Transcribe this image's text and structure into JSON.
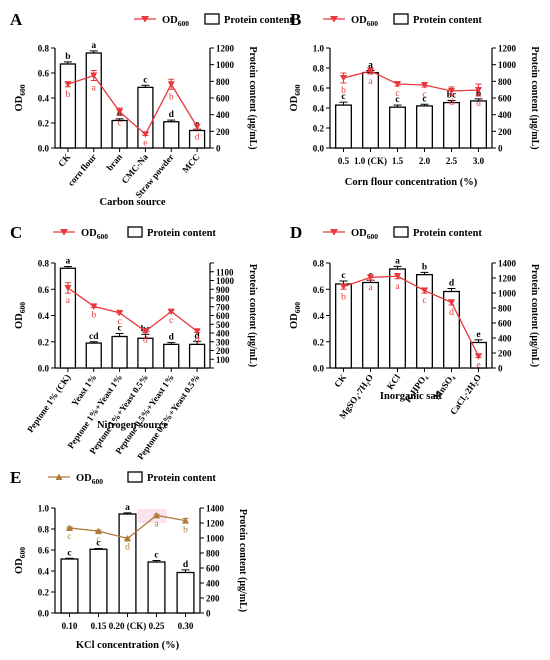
{
  "colors": {
    "red": "#e8383d",
    "brown": "#b07a3b",
    "highlight": "#f6dcea"
  },
  "legend": {
    "od_label": "OD",
    "od_sub": "600",
    "protein_label": "Protein content"
  },
  "chart_data": [
    {
      "panel": "A",
      "type": "bar",
      "categories": [
        "CK",
        "corn flour",
        "bran",
        "CMC-Na",
        "Straw powder",
        "MCC"
      ],
      "xlabel": "Carbon source",
      "x_tick_rotate": -50,
      "ylabel_left": "OD",
      "ylabel_left_sub": "600",
      "ylabel_right": "Protein content (μg/mL)",
      "ylim_left": [
        0,
        0.8
      ],
      "yticks_left": [
        "0.0",
        "0.2",
        "0.4",
        "0.6",
        "0.8"
      ],
      "ylim_right": [
        0,
        1200
      ],
      "yticks_right": [
        "0",
        "200",
        "400",
        "600",
        "800",
        "1000",
        "1200"
      ],
      "series": [
        {
          "name": "Protein content",
          "values": [
            1008,
            1140,
            330,
            728,
            315,
            210
          ],
          "errors": [
            25,
            25,
            20,
            25,
            20,
            15
          ],
          "letters": [
            "b",
            "a",
            "d",
            "c",
            "d",
            "e"
          ]
        },
        {
          "name": "OD600",
          "values": [
            0.51,
            0.58,
            0.29,
            0.11,
            0.51,
            0.17
          ],
          "errors": [
            0.02,
            0.04,
            0.03,
            0.01,
            0.04,
            0.02
          ],
          "letters": [
            "b",
            "a",
            "c",
            "e",
            "b",
            "d"
          ]
        }
      ],
      "line_color": "red"
    },
    {
      "panel": "B",
      "type": "bar",
      "categories": [
        "0.5",
        "1.0 (CK)",
        "1.5",
        "2.0",
        "2.5",
        "3.0"
      ],
      "xlabel": "Corn flour concentration (%)",
      "x_tick_rotate": 0,
      "ylabel_left": "OD",
      "ylabel_left_sub": "600",
      "ylabel_right": "Protein content (μg/mL)",
      "ylim_left": [
        0,
        1.0
      ],
      "yticks_left": [
        "0.0",
        "0.2",
        "0.4",
        "0.6",
        "0.8",
        "1.0"
      ],
      "ylim_right": [
        0,
        1200
      ],
      "yticks_right": [
        "0",
        "200",
        "400",
        "600",
        "800",
        "1000",
        "1200"
      ],
      "series": [
        {
          "name": "Protein content",
          "values": [
            515,
            905,
            490,
            505,
            545,
            565
          ],
          "errors": [
            35,
            25,
            25,
            20,
            25,
            25
          ],
          "letters": [
            "c",
            "a",
            "c",
            "c",
            "bc",
            "b"
          ]
        },
        {
          "name": "OD600",
          "values": [
            0.7,
            0.77,
            0.64,
            0.63,
            0.57,
            0.58
          ],
          "errors": [
            0.05,
            0.03,
            0.02,
            0.02,
            0.04,
            0.06
          ],
          "letters": [
            "b",
            "a",
            "c",
            "c",
            "d",
            "d"
          ]
        }
      ],
      "line_color": "red"
    },
    {
      "panel": "C",
      "type": "bar",
      "categories": [
        "Peptone 1% (CK)",
        "Yeast 1%",
        "Peptone 1%+Yeast 1%",
        "Peptone 1%+Yeast 0.5%",
        "Peptone 0.5%+Yeast 1%",
        "Peptone 0.5%+Yeast 0.5%"
      ],
      "xlabel": "Nitrogen source",
      "x_tick_rotate": -55,
      "ylabel_left": "OD",
      "ylabel_left_sub": "600",
      "ylabel_right": "Protein content (μg/mL)",
      "ylim_left": [
        0,
        0.8
      ],
      "yticks_left": [
        "0.0",
        "0.2",
        "0.4",
        "0.6",
        "0.8"
      ],
      "ylim_right": [
        0,
        1200
      ],
      "yticks_right": [
        "0",
        "100",
        "200",
        "300",
        "400",
        "500",
        "600",
        "700",
        "800",
        "900",
        "1000",
        "1100",
        "1200"
      ],
      "yticks_right_shown": [
        "100",
        "200",
        "300",
        "400",
        "500",
        "600",
        "700",
        "800",
        "900",
        "1000",
        "1100"
      ],
      "series": [
        {
          "name": "Protein content",
          "values": [
            1140,
            285,
            360,
            340,
            270,
            270
          ],
          "errors": [
            20,
            15,
            35,
            45,
            20,
            35
          ],
          "letters": [
            "a",
            "cd",
            "c",
            "bc",
            "d",
            "d"
          ]
        },
        {
          "name": "OD600",
          "values": [
            0.61,
            0.47,
            0.42,
            0.28,
            0.43,
            0.28
          ],
          "errors": [
            0.04,
            0.01,
            0.01,
            0.01,
            0.01,
            0.01
          ],
          "letters": [
            "a",
            "b",
            "c",
            "d",
            "c",
            "d"
          ]
        }
      ],
      "line_color": "red"
    },
    {
      "panel": "D",
      "type": "bar",
      "categories": [
        "CK",
        "MgSO₄·7H₂O",
        "KCl",
        "K₂HPO₄",
        "MnSO₄",
        "CaCl₂·2H₂O"
      ],
      "xlabel": "Inorganic salt",
      "x_tick_rotate": -55,
      "ylabel_left": "OD",
      "ylabel_left_sub": "600",
      "ylabel_right": "Protein content (μg/mL)",
      "ylim_left": [
        0,
        0.8
      ],
      "yticks_left": [
        "0.0",
        "0.2",
        "0.4",
        "0.6",
        "0.8"
      ],
      "ylim_right": [
        0,
        1400
      ],
      "yticks_right": [
        "0",
        "200",
        "400",
        "600",
        "800",
        "1000",
        "1200",
        "1400"
      ],
      "series": [
        {
          "name": "Protein content",
          "values": [
            1120,
            1140,
            1320,
            1245,
            1020,
            340
          ],
          "errors": [
            40,
            30,
            35,
            30,
            40,
            35
          ],
          "letters": [
            "c",
            "c",
            "a",
            "b",
            "d",
            "e"
          ]
        },
        {
          "name": "OD600",
          "values": [
            0.62,
            0.69,
            0.7,
            0.59,
            0.5,
            0.09
          ],
          "errors": [
            0.02,
            0.02,
            0.02,
            0.02,
            0.02,
            0.01
          ],
          "letters": [
            "b",
            "a",
            "a",
            "c",
            "d",
            "e"
          ]
        }
      ],
      "line_color": "red"
    },
    {
      "panel": "E",
      "type": "bar",
      "categories": [
        "0.10",
        "0.15",
        "0.20 (CK)",
        "0.25",
        "0.30"
      ],
      "xlabel": "KCl concentration (%)",
      "x_tick_rotate": 0,
      "ylabel_left": "OD",
      "ylabel_left_sub": "600",
      "ylabel_right": "Protein content (μg/mL)",
      "ylim_left": [
        0,
        1.0
      ],
      "yticks_left": [
        "0.0",
        "0.2",
        "0.4",
        "0.6",
        "0.8",
        "1.0"
      ],
      "ylim_right": [
        0,
        1400
      ],
      "yticks_right": [
        "0",
        "200",
        "400",
        "600",
        "800",
        "1000",
        "1200",
        "1400"
      ],
      "series": [
        {
          "name": "Protein content",
          "values": [
            720,
            850,
            1320,
            680,
            540
          ],
          "errors": [
            10,
            10,
            15,
            20,
            35
          ],
          "letters": [
            "c",
            "c",
            "a",
            "c",
            "d"
          ]
        },
        {
          "name": "OD600",
          "values": [
            0.81,
            0.78,
            0.71,
            0.93,
            0.88
          ],
          "errors": [
            0.01,
            0.01,
            0.01,
            0.01,
            0.02
          ],
          "letters": [
            "c",
            "c",
            "d",
            "a",
            "b"
          ]
        }
      ],
      "line_color": "brown"
    }
  ]
}
